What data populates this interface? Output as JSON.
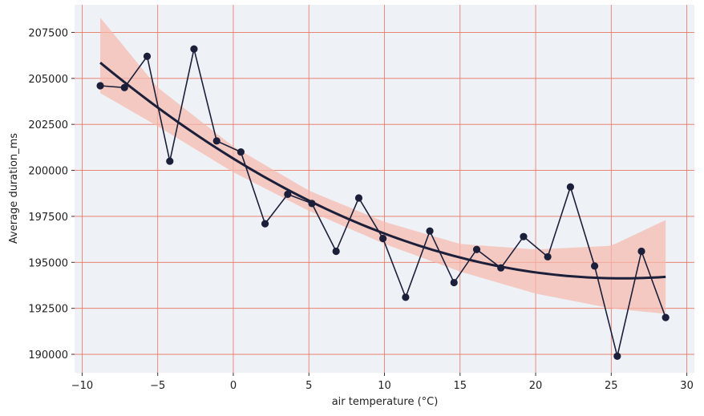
{
  "chart_data": {
    "type": "line",
    "xlabel": "air temperature (°C)",
    "ylabel": "Average duration_ms",
    "xlim": [
      -10.5,
      30.5
    ],
    "ylim": [
      189000,
      209000
    ],
    "x_ticks": [
      -10,
      -5,
      0,
      5,
      10,
      15,
      20,
      25,
      30
    ],
    "x_tick_labels": [
      "−10",
      "−5",
      "0",
      "5",
      "10",
      "15",
      "20",
      "25",
      "30"
    ],
    "y_ticks": [
      190000,
      192500,
      195000,
      197500,
      200000,
      202500,
      205000,
      207500
    ],
    "y_tick_labels": [
      "190000",
      "192500",
      "195000",
      "197500",
      "200000",
      "202500",
      "205000",
      "207500"
    ],
    "grid": true,
    "series": [
      {
        "kind": "line-markers",
        "x": [
          -8.8,
          -7.2,
          -5.7,
          -4.2,
          -2.6,
          -1.1,
          0.5,
          2.1,
          3.6,
          5.2,
          6.8,
          8.3,
          9.9,
          11.4,
          13.0,
          14.6,
          16.1,
          17.7,
          19.2,
          20.8,
          22.3,
          23.9,
          25.4,
          27.0,
          28.6
        ],
        "y": [
          204600,
          204500,
          206200,
          200500,
          206600,
          201600,
          201000,
          197100,
          198700,
          198200,
          195600,
          198500,
          196300,
          193100,
          196700,
          193900,
          195700,
          194700,
          196400,
          195300,
          199100,
          194800,
          189900,
          195600,
          192000
        ]
      },
      {
        "kind": "regression",
        "order": 2,
        "x": [
          -8.8,
          -5,
          0,
          5,
          10,
          15,
          20,
          25,
          28.6
        ],
        "y": [
          205900,
          203400,
          200600,
          198300,
          196600,
          195300,
          194500,
          194100,
          194200
        ],
        "ci_lower": [
          204200,
          202400,
          199900,
          197800,
          196000,
          194500,
          193300,
          192500,
          192200
        ],
        "ci_upper": [
          208300,
          204500,
          201300,
          198900,
          197200,
          196000,
          195700,
          195900,
          197300
        ]
      }
    ],
    "colors": {
      "background": "#eef1f6",
      "grid": "#e8735f",
      "line": "#1c1f3a",
      "band": "#f6b8ad"
    }
  }
}
